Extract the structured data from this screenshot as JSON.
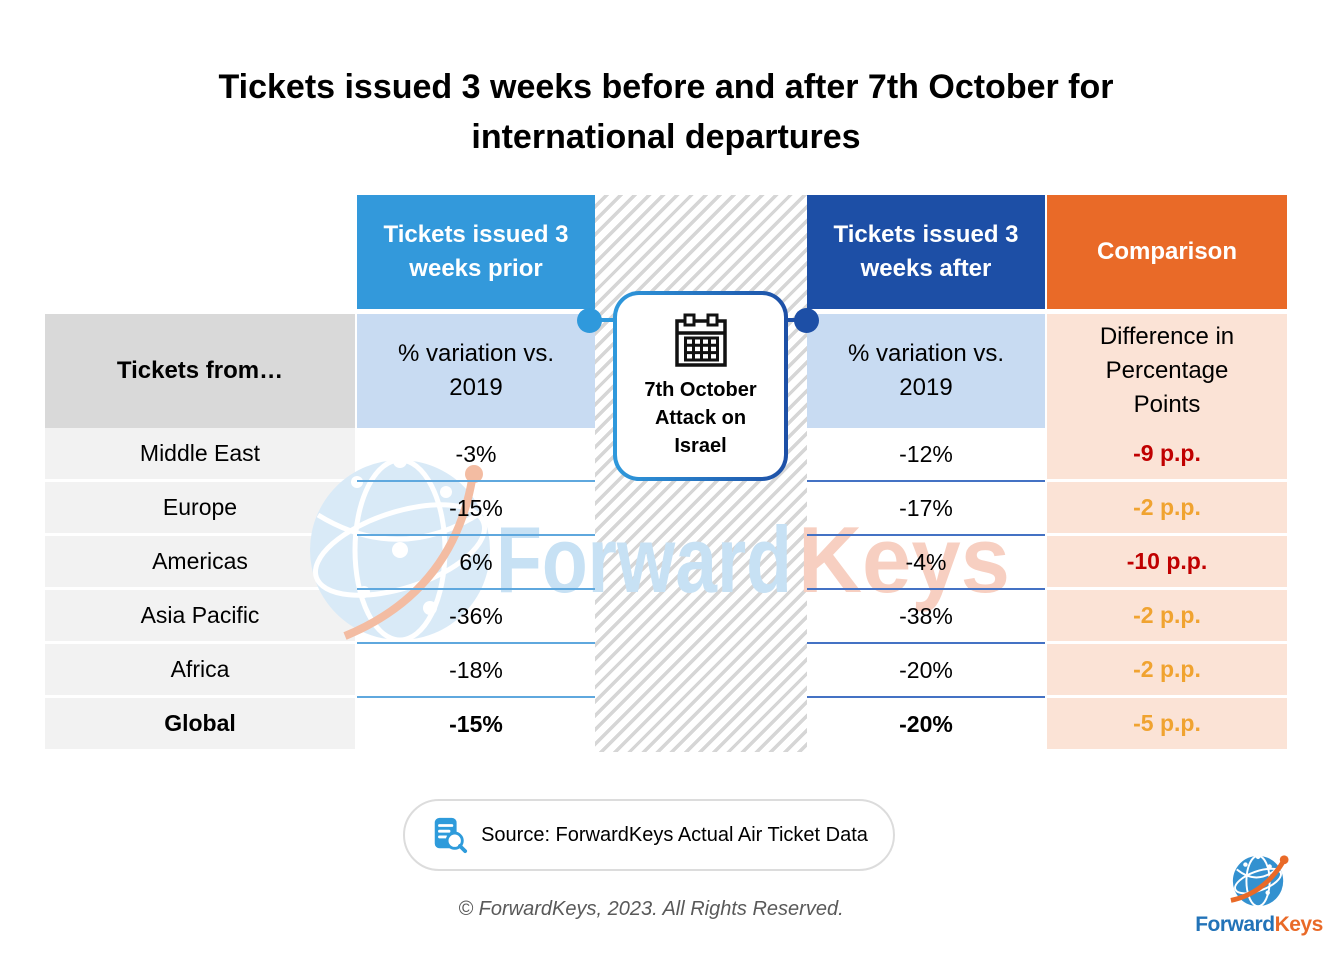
{
  "title_line1": "Tickets issued 3 weeks before and after 7th October for",
  "title_line2": "international departures",
  "table": {
    "corner_header": "Tickets from…",
    "col_prior": {
      "header": "Tickets issued 3 weeks prior",
      "subheader": "% variation vs. 2019"
    },
    "col_after": {
      "header": "Tickets issued 3 weeks after",
      "subheader": "% variation vs. 2019"
    },
    "col_comparison": {
      "header": "Comparison",
      "subheader": "Difference in Percentage Points"
    },
    "event_callout": {
      "label": "7th October Attack on Israel",
      "icon": "calendar-icon"
    },
    "rows": [
      {
        "region": "Middle East",
        "prior": "-3%",
        "after": "-12%",
        "comparison": "-9 p.p.",
        "comparison_color": "#C00000",
        "bold": false
      },
      {
        "region": "Europe",
        "prior": "-15%",
        "after": "-17%",
        "comparison": "-2 p.p.",
        "comparison_color": "#F0A330",
        "bold": false
      },
      {
        "region": "Americas",
        "prior": "6%",
        "after": "-4%",
        "comparison": "-10 p.p.",
        "comparison_color": "#C00000",
        "bold": false
      },
      {
        "region": "Asia Pacific",
        "prior": "-36%",
        "after": "-38%",
        "comparison": "-2 p.p.",
        "comparison_color": "#F0A330",
        "bold": false
      },
      {
        "region": "Africa",
        "prior": "-18%",
        "after": "-20%",
        "comparison": "-2 p.p.",
        "comparison_color": "#F0A330",
        "bold": false
      },
      {
        "region": "Global",
        "prior": "-15%",
        "after": "-20%",
        "comparison": "-5 p.p.",
        "comparison_color": "#F0A330",
        "bold": true
      }
    ]
  },
  "source": {
    "label": "Source: ForwardKeys Actual Air Ticket Data",
    "icon": "document-search-icon"
  },
  "footer": {
    "copyright": "© ForwardKeys, 2023. All Rights Reserved."
  },
  "watermark": {
    "text_blue": "Forward",
    "text_orange": "Keys"
  },
  "logo": {
    "text_blue": "Forward",
    "text_orange": "Keys"
  },
  "colors": {
    "header_blue": "#3399DB",
    "header_dark_blue": "#1D4FA6",
    "header_orange": "#E96A28",
    "subheader_blue": "#C8DBF2",
    "subheader_peach": "#FBE3D6",
    "corner_gray": "#D9D9D9",
    "row_gray": "#F2F2F2",
    "separator_prior": "#5FA8DE",
    "separator_after": "#4472C4",
    "negative_red": "#C00000",
    "warning_amber": "#F0A330"
  },
  "chart_data": {
    "type": "table",
    "title": "Tickets issued 3 weeks before and after 7th October for international departures",
    "categories": [
      "Middle East",
      "Europe",
      "Americas",
      "Asia Pacific",
      "Africa",
      "Global"
    ],
    "series": [
      {
        "name": "Tickets issued 3 weeks prior (% variation vs. 2019)",
        "values": [
          -3,
          -15,
          6,
          -36,
          -18,
          -15
        ]
      },
      {
        "name": "Tickets issued 3 weeks after (% variation vs. 2019)",
        "values": [
          -12,
          -17,
          -4,
          -38,
          -20,
          -20
        ]
      },
      {
        "name": "Comparison (Difference in Percentage Points)",
        "values": [
          -9,
          -2,
          -10,
          -2,
          -2,
          -5
        ]
      }
    ],
    "annotation": "7th October Attack on Israel",
    "source": "Source: ForwardKeys Actual Air Ticket Data"
  }
}
